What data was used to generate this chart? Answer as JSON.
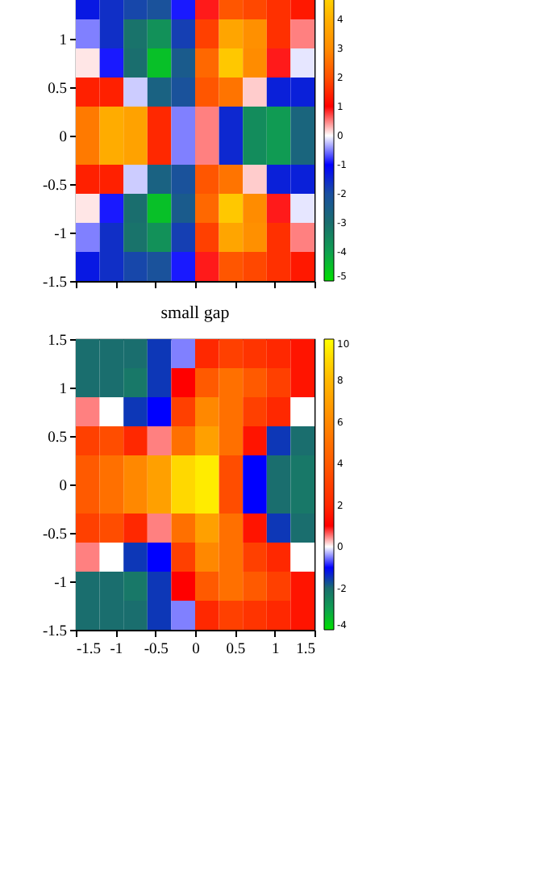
{
  "chart_data": [
    {
      "type": "heatmap",
      "x": [
        -1.35,
        -1.05,
        -0.75,
        -0.45,
        -0.15,
        0.15,
        0.45,
        0.75,
        1.05,
        1.35
      ],
      "y": [
        1.35,
        1.05,
        0.75,
        0.45,
        0.15,
        -0.15,
        -0.45,
        -0.75,
        -1.05,
        -1.35
      ],
      "cells": [
        [
          -1.3,
          -1.6,
          -1.9,
          -2.1,
          -0.9,
          0.9,
          2.1,
          1.9,
          1.6,
          1.3
        ],
        [
          -0.5,
          -1.6,
          -3.1,
          -3.7,
          -1.8,
          1.8,
          3.7,
          3.1,
          1.6,
          0.5
        ],
        [
          0.1,
          -0.9,
          -3.0,
          -4.5,
          -2.4,
          2.4,
          4.5,
          3.0,
          0.9,
          -0.1
        ],
        [
          1.4,
          1.4,
          -0.2,
          -2.6,
          -2.1,
          2.1,
          2.6,
          0.2,
          -1.4,
          -1.4
        ],
        [
          2.7,
          3.9,
          3.6,
          1.5,
          -0.5,
          0.5,
          -1.5,
          -3.6,
          -3.9,
          -2.7
        ],
        [
          2.7,
          3.9,
          3.6,
          1.5,
          -0.5,
          0.5,
          -1.5,
          -3.6,
          -3.9,
          -2.7
        ],
        [
          1.4,
          1.4,
          -0.2,
          -2.6,
          -2.1,
          2.1,
          2.6,
          0.2,
          -1.4,
          -1.4
        ],
        [
          0.1,
          -0.9,
          -3.0,
          -4.5,
          -2.4,
          2.4,
          4.5,
          3.0,
          0.9,
          -0.1
        ],
        [
          -0.5,
          -1.6,
          -3.1,
          -3.7,
          -1.8,
          1.8,
          3.7,
          3.1,
          1.6,
          0.5
        ],
        [
          -1.3,
          -1.6,
          -1.9,
          -2.1,
          -0.9,
          0.9,
          2.1,
          1.9,
          1.6,
          1.3
        ]
      ],
      "colors": [
        "#00e000",
        "#0fa050",
        "#1a6e6e",
        "#1a4fa0",
        "#0000ff",
        "#ffffff",
        "#ff0000",
        "#ff5000",
        "#ff8c00",
        "#ffb000",
        "#ffe000"
      ],
      "clim": [
        -5,
        5
      ],
      "cticks": [
        -5,
        -4,
        -3,
        -2,
        -1,
        0,
        1,
        2,
        3,
        4
      ],
      "xlim": [
        -1.5,
        1.5
      ],
      "xticks": [
        -1.5,
        -1,
        -0.5,
        0,
        0.5,
        1,
        1.5
      ],
      "ylim": [
        -1.5,
        1.5
      ],
      "yticks": [
        -1.5,
        -1,
        -0.5,
        0,
        0.5,
        1
      ],
      "tick_labels": "y"
    },
    {
      "type": "heatmap",
      "title": "small gap",
      "x": [
        -1.35,
        -1.05,
        -0.75,
        -0.45,
        -0.15,
        0.15,
        0.45,
        0.75,
        1.05,
        1.35
      ],
      "y": [
        1.35,
        1.05,
        0.75,
        0.45,
        0.15,
        -0.15,
        -0.45,
        -0.75,
        -1.05,
        -1.35
      ],
      "cells": [
        [
          -2,
          -2,
          -2,
          -1.5,
          -0.5,
          2,
          3,
          2.5,
          2,
          1.5
        ],
        [
          -2,
          -2,
          -2.2,
          -1.5,
          1,
          4,
          5,
          4,
          3,
          1.5
        ],
        [
          0.5,
          0,
          -1.5,
          -1,
          3,
          6,
          5,
          3,
          2,
          0
        ],
        [
          3,
          3.5,
          2,
          0.5,
          5,
          7,
          5,
          1.5,
          -1.5,
          -2
        ],
        [
          4,
          5,
          6,
          7,
          9,
          9.5,
          3.5,
          -1,
          -2,
          -2.2
        ],
        [
          4,
          5,
          6,
          7,
          9,
          9.5,
          3.5,
          -1,
          -2,
          -2.2
        ],
        [
          3,
          3.5,
          2,
          0.5,
          5,
          7,
          5,
          1.5,
          -1.5,
          -2
        ],
        [
          0.5,
          0,
          -1.5,
          -1,
          3,
          6,
          5,
          3,
          2,
          0
        ],
        [
          -2,
          -2,
          -2.2,
          -1.5,
          1,
          4,
          5,
          4,
          3,
          1.5
        ],
        [
          -2,
          -2,
          -2,
          -1.5,
          -0.5,
          2,
          3,
          2.5,
          2,
          1.5
        ]
      ],
      "colors": [
        "#00e000",
        "#0fa050",
        "#1a6e6e",
        "#0000ff",
        "#ffffff",
        "#ff0000",
        "#ff2800",
        "#ff4000",
        "#ff5a00",
        "#ff7000",
        "#ff8800",
        "#ffa000",
        "#ffb800",
        "#ffd800",
        "#ffff00"
      ],
      "clim": [
        -4,
        10
      ],
      "cticks": [
        -4,
        -2,
        0,
        2,
        4,
        6,
        8,
        10
      ],
      "xlim": [
        -1.5,
        1.5
      ],
      "xticks": [
        -1.5,
        -1,
        -0.5,
        0,
        0.5,
        1,
        1.5
      ],
      "ylim": [
        -1.5,
        1.5
      ],
      "yticks": [
        -1.5,
        -1,
        -0.5,
        0,
        0.5,
        1,
        1.5
      ]
    }
  ]
}
